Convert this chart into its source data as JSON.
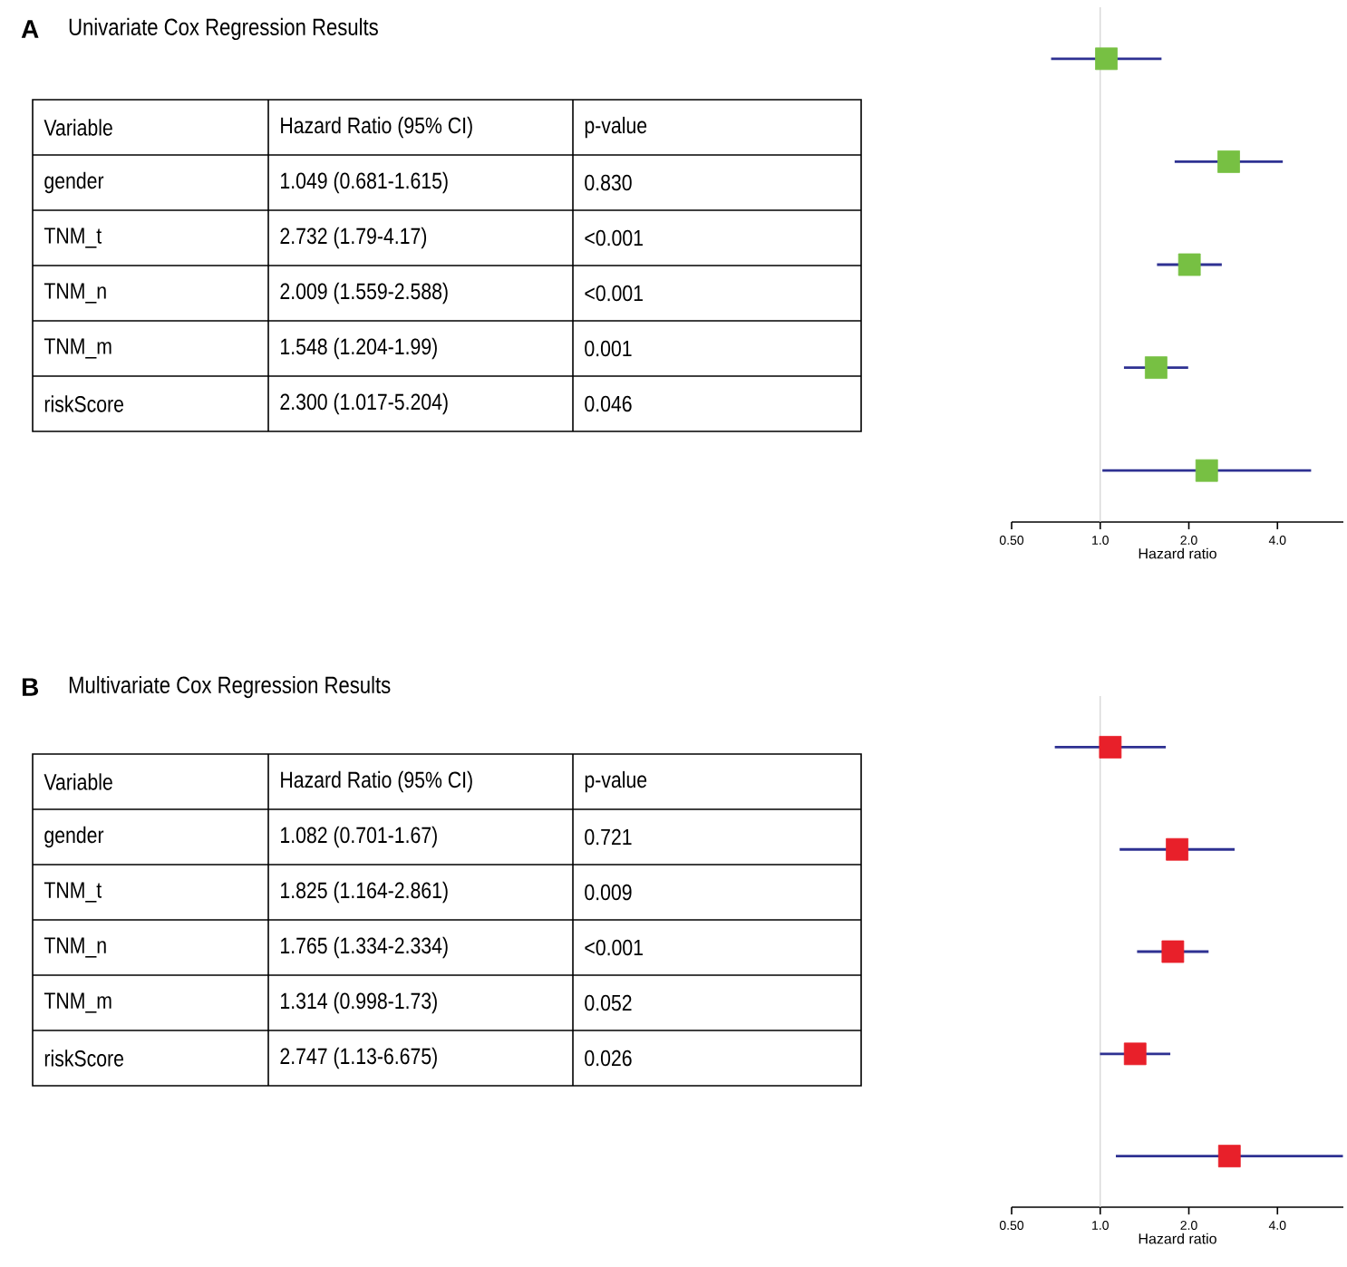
{
  "chart_data": [
    {
      "type": "other",
      "title": "Univariate Cox Regression Results",
      "annotations": [
        "A",
        "Variable",
        "Hazard Ratio (95% CI)",
        "p-value",
        "gender",
        "1.049 (0.681-1.615)",
        "0.830",
        "TNM_t",
        "2.732 (1.79-4.17)",
        "<0.001",
        "TNM_n",
        "2.009 (1.559-2.588)",
        "<0.001",
        "TNM_m",
        "1.548 (1.204-1.99)",
        "0.001",
        "riskScore",
        "2.300 (1.017-5.204)",
        "0.046"
      ]
    },
    {
      "type": "scatter",
      "xlabel": "Hazard ratio",
      "categories": [
        null,
        null,
        null,
        null,
        null
      ],
      "values": [
        1.049,
        2.732,
        2.009,
        1.548,
        2.3
      ],
      "errors": [
        [
          0.681,
          1.615
        ],
        [
          1.79,
          4.17
        ],
        [
          1.559,
          2.588
        ],
        [
          1.204,
          1.99
        ],
        [
          1.017,
          5.204
        ]
      ],
      "color": "#77c043",
      "marker": "square",
      "orientation": "horizontal",
      "log": "x",
      "xlim": [
        0.5,
        6.7
      ],
      "xticks": [
        {
          "value": 0.5,
          "label": "0.50"
        },
        {
          "value": 1,
          "label": "1.0"
        },
        {
          "value": 2,
          "label": "2.0"
        },
        {
          "value": 4,
          "label": "4.0"
        }
      ],
      "ref_lines": [
        {
          "axis": "x",
          "value": 1,
          "color": "#d0d0d0"
        }
      ]
    },
    {
      "type": "other",
      "title": "Multivariate Cox Regression Results",
      "annotations": [
        "B",
        "Variable",
        "Hazard Ratio (95% CI)",
        "p-value",
        "gender",
        "1.082 (0.701-1.67)",
        "0.721",
        "TNM_t",
        "1.825 (1.164-2.861)",
        "0.009",
        "TNM_n",
        "1.765 (1.334-2.334)",
        "<0.001",
        "TNM_m",
        "1.314 (0.998-1.73)",
        "0.052",
        "riskScore",
        "2.747 (1.13-6.675)",
        "0.026"
      ]
    },
    {
      "type": "scatter",
      "xlabel": "Hazard ratio",
      "categories": [
        null,
        null,
        null,
        null,
        null
      ],
      "values": [
        1.082,
        1.825,
        1.765,
        1.314,
        2.747
      ],
      "errors": [
        [
          0.701,
          1.67
        ],
        [
          1.164,
          2.861
        ],
        [
          1.334,
          2.334
        ],
        [
          0.998,
          1.73
        ],
        [
          1.13,
          6.675
        ]
      ],
      "color": "#e8202a",
      "marker": "square",
      "orientation": "horizontal",
      "log": "x",
      "xlim": [
        0.5,
        6.7
      ],
      "xticks": [
        {
          "value": 0.5,
          "label": "0.50"
        },
        {
          "value": 1,
          "label": "1.0"
        },
        {
          "value": 2,
          "label": "2.0"
        },
        {
          "value": 4,
          "label": "4.0"
        }
      ],
      "ref_lines": [
        {
          "axis": "x",
          "value": 1,
          "color": "#d0d0d0"
        }
      ]
    }
  ]
}
